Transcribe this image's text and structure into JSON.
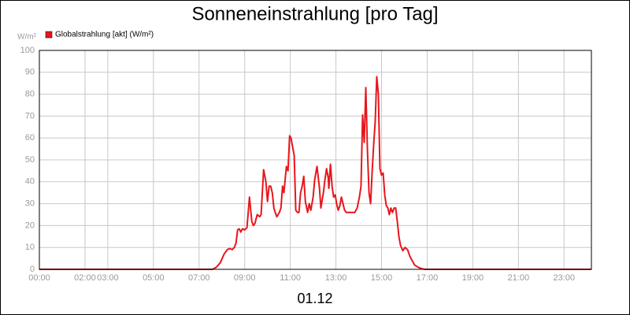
{
  "chart_data": {
    "type": "line",
    "title": "Sonneneinstrahlung [pro Tag]",
    "ylabel": "W/m²",
    "xlabel": "01.12",
    "x": [
      0,
      7.59,
      7.76,
      7.93,
      8.1,
      8.24,
      8.34,
      8.45,
      8.55,
      8.62,
      8.69,
      8.76,
      8.83,
      8.9,
      9.0,
      9.1,
      9.21,
      9.31,
      9.38,
      9.45,
      9.55,
      9.66,
      9.72,
      9.83,
      9.93,
      10.0,
      10.07,
      10.14,
      10.21,
      10.28,
      10.34,
      10.41,
      10.52,
      10.59,
      10.66,
      10.72,
      10.83,
      10.9,
      10.97,
      11.03,
      11.1,
      11.17,
      11.24,
      11.31,
      11.38,
      11.45,
      11.52,
      11.59,
      11.66,
      11.76,
      11.83,
      11.9,
      12.0,
      12.07,
      12.17,
      12.28,
      12.34,
      12.45,
      12.52,
      12.59,
      12.66,
      12.69,
      12.76,
      12.83,
      12.9,
      12.97,
      13.03,
      13.1,
      13.17,
      13.24,
      13.31,
      13.38,
      13.45,
      13.55,
      13.69,
      13.83,
      13.93,
      14.03,
      14.1,
      14.17,
      14.24,
      14.31,
      14.38,
      14.45,
      14.52,
      14.59,
      14.66,
      14.72,
      14.79,
      14.86,
      14.93,
      15.0,
      15.07,
      15.14,
      15.21,
      15.28,
      15.34,
      15.41,
      15.48,
      15.55,
      15.62,
      15.69,
      15.76,
      15.83,
      15.93,
      16.03,
      16.14,
      16.24,
      16.34,
      16.45,
      16.59,
      16.76,
      16.9,
      24.2
    ],
    "series": [
      {
        "name": "Globalstrahlung [akt] (W/m²)",
        "color": "#e8161b",
        "values": [
          0,
          0,
          1,
          3,
          7,
          9,
          9.5,
          9,
          10,
          12,
          18,
          18.5,
          17,
          18.5,
          18,
          19,
          33,
          22,
          20,
          21,
          25,
          24,
          25,
          45.5,
          40,
          31,
          38,
          38,
          35,
          28,
          26,
          24,
          26,
          28,
          38,
          35,
          47,
          45,
          61,
          60,
          56,
          52,
          27,
          26,
          26,
          35,
          38,
          42.5,
          31,
          26,
          30,
          27,
          33,
          41,
          47,
          37,
          28,
          35,
          41,
          46,
          42,
          37,
          48,
          38,
          33,
          34,
          30,
          27,
          29,
          33,
          30,
          27,
          26,
          26,
          26,
          26,
          28,
          33,
          38,
          70.5,
          58,
          83,
          55,
          35,
          30,
          45,
          58,
          67,
          88,
          80,
          46,
          43,
          44,
          34,
          29,
          28,
          25,
          28,
          26,
          28,
          28,
          22,
          15,
          11,
          8.5,
          10,
          9,
          6,
          4,
          2,
          1,
          0.3,
          0,
          0
        ]
      }
    ],
    "xlim": [
      0,
      24.2
    ],
    "xticks": [
      {
        "value": 0,
        "label": "00:00"
      },
      {
        "value": 2,
        "label": "02:00"
      },
      {
        "value": 3,
        "label": "03:00"
      },
      {
        "value": 5,
        "label": "05:00"
      },
      {
        "value": 7,
        "label": "07:00"
      },
      {
        "value": 9,
        "label": "09:00"
      },
      {
        "value": 11,
        "label": "11:00"
      },
      {
        "value": 13,
        "label": "13:00"
      },
      {
        "value": 15,
        "label": "15:00"
      },
      {
        "value": 17,
        "label": "17:00"
      },
      {
        "value": 19,
        "label": "19:00"
      },
      {
        "value": 21,
        "label": "21:00"
      },
      {
        "value": 23,
        "label": "23:00"
      }
    ],
    "ylim": [
      0,
      100
    ],
    "yticks": [
      0,
      10,
      20,
      30,
      40,
      50,
      60,
      70,
      80,
      90,
      100
    ],
    "grid": true
  }
}
